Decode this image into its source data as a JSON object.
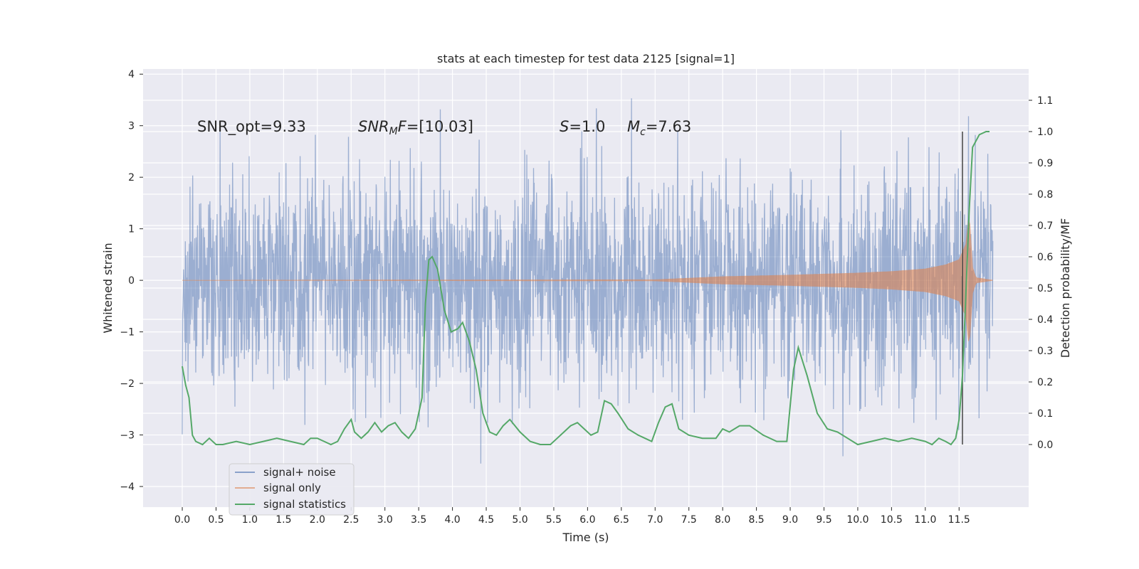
{
  "chart_data": {
    "type": "line",
    "title": "stats at each timestep for test data 2125 [signal=1]",
    "xlabel": "Time (s)",
    "ylabel": "Whitened strain",
    "y2label": "Detection probability/MF",
    "xlim": [
      -0.58,
      12.53
    ],
    "ylim": [
      -4.4,
      4.1
    ],
    "y2lim": [
      -0.2,
      1.2
    ],
    "x_ticks": [
      "0.0",
      "0.5",
      "1.0",
      "1.5",
      "2.0",
      "2.5",
      "3.0",
      "3.5",
      "4.0",
      "4.5",
      "5.0",
      "5.5",
      "6.0",
      "6.5",
      "7.0",
      "7.5",
      "8.0",
      "8.5",
      "9.0",
      "9.5",
      "10.0",
      "10.5",
      "11.0",
      "11.5"
    ],
    "y_ticks": [
      "−4",
      "−3",
      "−2",
      "−1",
      "0",
      "1",
      "2",
      "3",
      "4"
    ],
    "y2_ticks": [
      "0.0",
      "0.1",
      "0.2",
      "0.3",
      "0.4",
      "0.5",
      "0.6",
      "0.7",
      "0.8",
      "0.9",
      "1.0",
      "1.1"
    ],
    "grid": true,
    "legend_position": "lower-left",
    "annotations": {
      "snr_opt": "SNR_opt=9.33",
      "snr_mf_sym": "SNR",
      "snr_mf_sub": "M",
      "snr_mf_sym2": "F",
      "snr_mf_val": "=[10.03]",
      "s_sym": "S",
      "s_val": "=1.0",
      "mc_sym": "M",
      "mc_sub": "c",
      "mc_val": "=7.63"
    },
    "series": [
      {
        "name": "signal+ noise",
        "color": "#4c72b0",
        "note": "noise-dominated whitened strain trace spanning roughly ±1.3 with peaks to about ±4"
      },
      {
        "name": "signal only",
        "color": "#dd8452",
        "chirp_envelope": {
          "t": [
            0,
            7.0,
            7.5,
            8.0,
            9.0,
            10.0,
            10.5,
            11.0,
            11.3,
            11.5,
            11.6,
            11.65,
            11.7,
            11.75,
            12.0
          ],
          "amp": [
            0,
            0.01,
            0.04,
            0.07,
            0.1,
            0.14,
            0.17,
            0.22,
            0.3,
            0.4,
            0.7,
            1.3,
            0.25,
            0.05,
            0
          ]
        }
      },
      {
        "name": "signal statistics",
        "color": "#55a868",
        "axis": "right",
        "x": [
          0.0,
          0.05,
          0.1,
          0.15,
          0.2,
          0.3,
          0.4,
          0.5,
          0.6,
          0.8,
          1.0,
          1.2,
          1.4,
          1.6,
          1.8,
          1.9,
          2.0,
          2.1,
          2.2,
          2.3,
          2.4,
          2.5,
          2.55,
          2.65,
          2.75,
          2.85,
          2.95,
          3.05,
          3.15,
          3.25,
          3.35,
          3.45,
          3.55,
          3.6,
          3.65,
          3.7,
          3.78,
          3.88,
          3.98,
          4.08,
          4.15,
          4.25,
          4.35,
          4.45,
          4.55,
          4.65,
          4.75,
          4.85,
          5.0,
          5.15,
          5.3,
          5.45,
          5.55,
          5.65,
          5.75,
          5.85,
          5.95,
          6.05,
          6.15,
          6.25,
          6.35,
          6.45,
          6.6,
          6.75,
          6.85,
          6.95,
          7.05,
          7.15,
          7.25,
          7.35,
          7.5,
          7.7,
          7.9,
          8.0,
          8.1,
          8.25,
          8.4,
          8.6,
          8.8,
          8.95,
          9.05,
          9.12,
          9.25,
          9.4,
          9.55,
          9.7,
          9.85,
          10.0,
          10.2,
          10.4,
          10.6,
          10.8,
          11.0,
          11.1,
          11.2,
          11.3,
          11.38,
          11.45,
          11.5,
          11.55,
          11.6,
          11.65,
          11.7,
          11.8,
          11.9,
          11.95
        ],
        "y": [
          0.25,
          0.19,
          0.15,
          0.03,
          0.01,
          0.0,
          0.02,
          0.0,
          0.0,
          0.01,
          0.0,
          0.01,
          0.02,
          0.01,
          0.0,
          0.02,
          0.02,
          0.01,
          0.0,
          0.01,
          0.05,
          0.08,
          0.04,
          0.02,
          0.04,
          0.07,
          0.04,
          0.06,
          0.07,
          0.04,
          0.02,
          0.05,
          0.15,
          0.45,
          0.59,
          0.6,
          0.56,
          0.43,
          0.36,
          0.37,
          0.39,
          0.33,
          0.24,
          0.1,
          0.04,
          0.03,
          0.06,
          0.08,
          0.04,
          0.01,
          0.0,
          0.0,
          0.02,
          0.04,
          0.06,
          0.07,
          0.05,
          0.03,
          0.04,
          0.14,
          0.13,
          0.1,
          0.05,
          0.03,
          0.02,
          0.01,
          0.07,
          0.12,
          0.13,
          0.05,
          0.03,
          0.02,
          0.02,
          0.05,
          0.04,
          0.06,
          0.06,
          0.03,
          0.01,
          0.01,
          0.24,
          0.31,
          0.22,
          0.1,
          0.05,
          0.04,
          0.02,
          0.0,
          0.01,
          0.02,
          0.01,
          0.02,
          0.01,
          0.0,
          0.02,
          0.01,
          0.0,
          0.02,
          0.08,
          0.22,
          0.48,
          0.75,
          0.95,
          0.99,
          1.0,
          1.0
        ]
      }
    ],
    "marker_x": 11.55
  }
}
